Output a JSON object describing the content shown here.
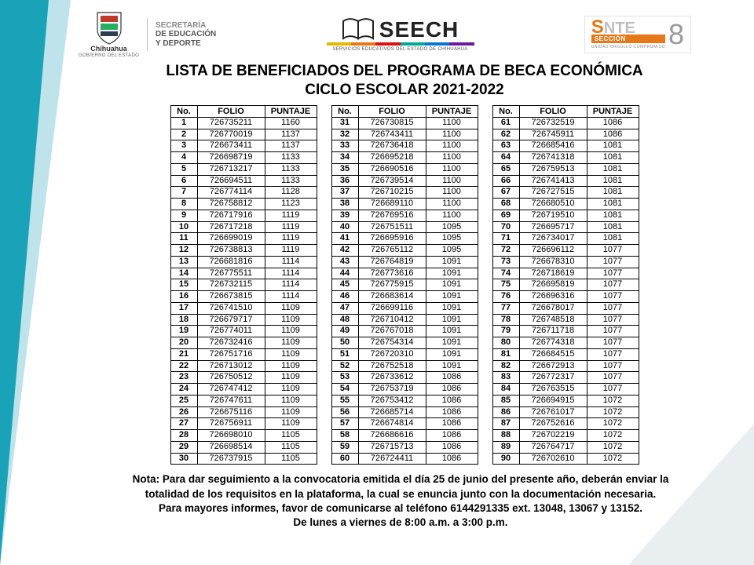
{
  "heading": {
    "line1": "LISTA DE BENEFICIADOS DEL PROGRAMA DE BECA ECONÓMICA",
    "line2": "CICLO ESCOLAR 2021-2022"
  },
  "logos": {
    "chihuahua_label": "Chihuahua",
    "chihuahua_sub": "GOBIERNO DEL ESTADO",
    "secretaria_l1": "SECRETARÍA",
    "secretaria_l2": "DE EDUCACIÓN",
    "secretaria_l3": "Y DEPORTE",
    "seech_name": "SEECH",
    "seech_sub": "SERVICIOS EDUCATIVOS DEL ESTADO DE CHIHUAHUA",
    "seech_bar_colors": [
      "#e6b800",
      "#e67817",
      "#d11",
      "#0a9",
      "#0976d2",
      "#6a1b9a"
    ],
    "snte_s": "S",
    "snte_rest": "NTE",
    "snte_seccion": "SECCIÓN",
    "snte_tag": "UNIDAD ORGULLO COMPROMISO",
    "snte_num": "8"
  },
  "table": {
    "headers": {
      "no": "No.",
      "folio": "FOLIO",
      "puntaje": "PUNTAJE"
    },
    "rows": [
      {
        "n": 1,
        "f": "726735211",
        "p": 1160
      },
      {
        "n": 2,
        "f": "726770019",
        "p": 1137
      },
      {
        "n": 3,
        "f": "726673411",
        "p": 1137
      },
      {
        "n": 4,
        "f": "726698719",
        "p": 1133
      },
      {
        "n": 5,
        "f": "726713217",
        "p": 1133
      },
      {
        "n": 6,
        "f": "726694511",
        "p": 1133
      },
      {
        "n": 7,
        "f": "726774114",
        "p": 1128
      },
      {
        "n": 8,
        "f": "726758812",
        "p": 1123
      },
      {
        "n": 9,
        "f": "726717916",
        "p": 1119
      },
      {
        "n": 10,
        "f": "726717218",
        "p": 1119
      },
      {
        "n": 11,
        "f": "726699019",
        "p": 1119
      },
      {
        "n": 12,
        "f": "726738813",
        "p": 1119
      },
      {
        "n": 13,
        "f": "726681816",
        "p": 1114
      },
      {
        "n": 14,
        "f": "726775511",
        "p": 1114
      },
      {
        "n": 15,
        "f": "726732115",
        "p": 1114
      },
      {
        "n": 16,
        "f": "726673815",
        "p": 1114
      },
      {
        "n": 17,
        "f": "726741510",
        "p": 1109
      },
      {
        "n": 18,
        "f": "726679717",
        "p": 1109
      },
      {
        "n": 19,
        "f": "726774011",
        "p": 1109
      },
      {
        "n": 20,
        "f": "726732416",
        "p": 1109
      },
      {
        "n": 21,
        "f": "726751716",
        "p": 1109
      },
      {
        "n": 22,
        "f": "726713012",
        "p": 1109
      },
      {
        "n": 23,
        "f": "726750512",
        "p": 1109
      },
      {
        "n": 24,
        "f": "726747412",
        "p": 1109
      },
      {
        "n": 25,
        "f": "726747611",
        "p": 1109
      },
      {
        "n": 26,
        "f": "726675116",
        "p": 1109
      },
      {
        "n": 27,
        "f": "726756911",
        "p": 1109
      },
      {
        "n": 28,
        "f": "726698010",
        "p": 1105
      },
      {
        "n": 29,
        "f": "726698514",
        "p": 1105
      },
      {
        "n": 30,
        "f": "726737915",
        "p": 1105
      },
      {
        "n": 31,
        "f": "726730815",
        "p": 1100
      },
      {
        "n": 32,
        "f": "726743411",
        "p": 1100
      },
      {
        "n": 33,
        "f": "726736418",
        "p": 1100
      },
      {
        "n": 34,
        "f": "726695218",
        "p": 1100
      },
      {
        "n": 35,
        "f": "726690516",
        "p": 1100
      },
      {
        "n": 36,
        "f": "726739514",
        "p": 1100
      },
      {
        "n": 37,
        "f": "726710215",
        "p": 1100
      },
      {
        "n": 38,
        "f": "726689110",
        "p": 1100
      },
      {
        "n": 39,
        "f": "726769516",
        "p": 1100
      },
      {
        "n": 40,
        "f": "726751511",
        "p": 1095
      },
      {
        "n": 41,
        "f": "726695916",
        "p": 1095
      },
      {
        "n": 42,
        "f": "726765112",
        "p": 1095
      },
      {
        "n": 43,
        "f": "726764819",
        "p": 1091
      },
      {
        "n": 44,
        "f": "726773616",
        "p": 1091
      },
      {
        "n": 45,
        "f": "726775915",
        "p": 1091
      },
      {
        "n": 46,
        "f": "726683614",
        "p": 1091
      },
      {
        "n": 47,
        "f": "726699116",
        "p": 1091
      },
      {
        "n": 48,
        "f": "726710412",
        "p": 1091
      },
      {
        "n": 49,
        "f": "726767018",
        "p": 1091
      },
      {
        "n": 50,
        "f": "726754314",
        "p": 1091
      },
      {
        "n": 51,
        "f": "726720310",
        "p": 1091
      },
      {
        "n": 52,
        "f": "726752518",
        "p": 1091
      },
      {
        "n": 53,
        "f": "726733612",
        "p": 1086
      },
      {
        "n": 54,
        "f": "726753719",
        "p": 1086
      },
      {
        "n": 55,
        "f": "726753412",
        "p": 1086
      },
      {
        "n": 56,
        "f": "726685714",
        "p": 1086
      },
      {
        "n": 57,
        "f": "726674814",
        "p": 1086
      },
      {
        "n": 58,
        "f": "726686616",
        "p": 1086
      },
      {
        "n": 59,
        "f": "726715713",
        "p": 1086
      },
      {
        "n": 60,
        "f": "726724411",
        "p": 1086
      },
      {
        "n": 61,
        "f": "726732519",
        "p": 1086
      },
      {
        "n": 62,
        "f": "726745911",
        "p": 1086
      },
      {
        "n": 63,
        "f": "726685416",
        "p": 1081
      },
      {
        "n": 64,
        "f": "726741318",
        "p": 1081
      },
      {
        "n": 65,
        "f": "726759513",
        "p": 1081
      },
      {
        "n": 66,
        "f": "726741413",
        "p": 1081
      },
      {
        "n": 67,
        "f": "726727515",
        "p": 1081
      },
      {
        "n": 68,
        "f": "726680510",
        "p": 1081
      },
      {
        "n": 69,
        "f": "726719510",
        "p": 1081
      },
      {
        "n": 70,
        "f": "726695717",
        "p": 1081
      },
      {
        "n": 71,
        "f": "726734017",
        "p": 1081
      },
      {
        "n": 72,
        "f": "726696112",
        "p": 1077
      },
      {
        "n": 73,
        "f": "726678310",
        "p": 1077
      },
      {
        "n": 74,
        "f": "726718619",
        "p": 1077
      },
      {
        "n": 75,
        "f": "726695819",
        "p": 1077
      },
      {
        "n": 76,
        "f": "726696316",
        "p": 1077
      },
      {
        "n": 77,
        "f": "726678017",
        "p": 1077
      },
      {
        "n": 78,
        "f": "726748518",
        "p": 1077
      },
      {
        "n": 79,
        "f": "726711718",
        "p": 1077
      },
      {
        "n": 80,
        "f": "726774318",
        "p": 1077
      },
      {
        "n": 81,
        "f": "726684515",
        "p": 1077
      },
      {
        "n": 82,
        "f": "726672913",
        "p": 1077
      },
      {
        "n": 83,
        "f": "726772317",
        "p": 1077
      },
      {
        "n": 84,
        "f": "726763515",
        "p": 1077
      },
      {
        "n": 85,
        "f": "726694915",
        "p": 1072
      },
      {
        "n": 86,
        "f": "726761017",
        "p": 1072
      },
      {
        "n": 87,
        "f": "726752616",
        "p": 1072
      },
      {
        "n": 88,
        "f": "726702219",
        "p": 1072
      },
      {
        "n": 89,
        "f": "726764717",
        "p": 1072
      },
      {
        "n": 90,
        "f": "726702610",
        "p": 1072
      }
    ]
  },
  "note": {
    "l1": "Nota: Para dar seguimiento a la convocatoria emitida el día 25 de junio del presente año, deberán enviar la",
    "l2": "totalidad de los requisitos en la plataforma, la cual se enuncia junto con la documentación necesaria.",
    "l3": "Para mayores informes, favor de comunicarse al teléfono 6144291335 ext. 13048, 13067 y 13152.",
    "l4": "De lunes a viernes de 8:00 a.m. a 3:00 p.m."
  },
  "style": {
    "triangle_left_light": "#bfe3ea",
    "triangle_left_dark": "#1aa3b8",
    "triangle_right_color": "#e9eef1"
  }
}
